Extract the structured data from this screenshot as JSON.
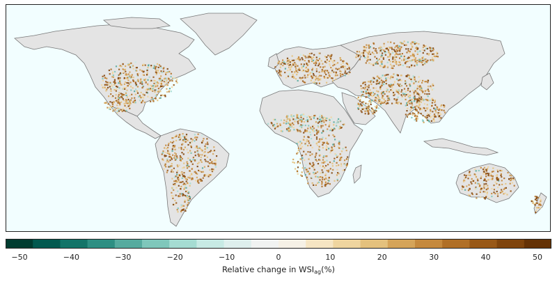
{
  "map": {
    "ocean_color": "#f2feff",
    "land_baseline_color": "#e4e4e4",
    "coastline_color": "#777777",
    "dominant_change": "increase (brown) over most agricultural land; decrease (teal) patches in Sahel, Central Asia, Tibetan plateau, parts of North America"
  },
  "colorbar": {
    "min": -50,
    "max": 50,
    "step": 5,
    "tick_labels": [
      "−50",
      "−40",
      "−30",
      "−20",
      "−10",
      "0",
      "10",
      "20",
      "30",
      "40",
      "50"
    ],
    "colors": [
      "#003c30",
      "#02594f",
      "#137468",
      "#2e8f83",
      "#56ab9f",
      "#7fc7bb",
      "#a5dcd2",
      "#c7eae4",
      "#deefed",
      "#f1f3f2",
      "#f6f1e6",
      "#f6e5c3",
      "#efd59f",
      "#e4c17d",
      "#d5a459",
      "#c5893d",
      "#b06f26",
      "#985817",
      "#7f440c",
      "#653205"
    ],
    "title_prefix": "Relative change in WSI",
    "title_subscript": "ag",
    "title_suffix": "(%)"
  }
}
